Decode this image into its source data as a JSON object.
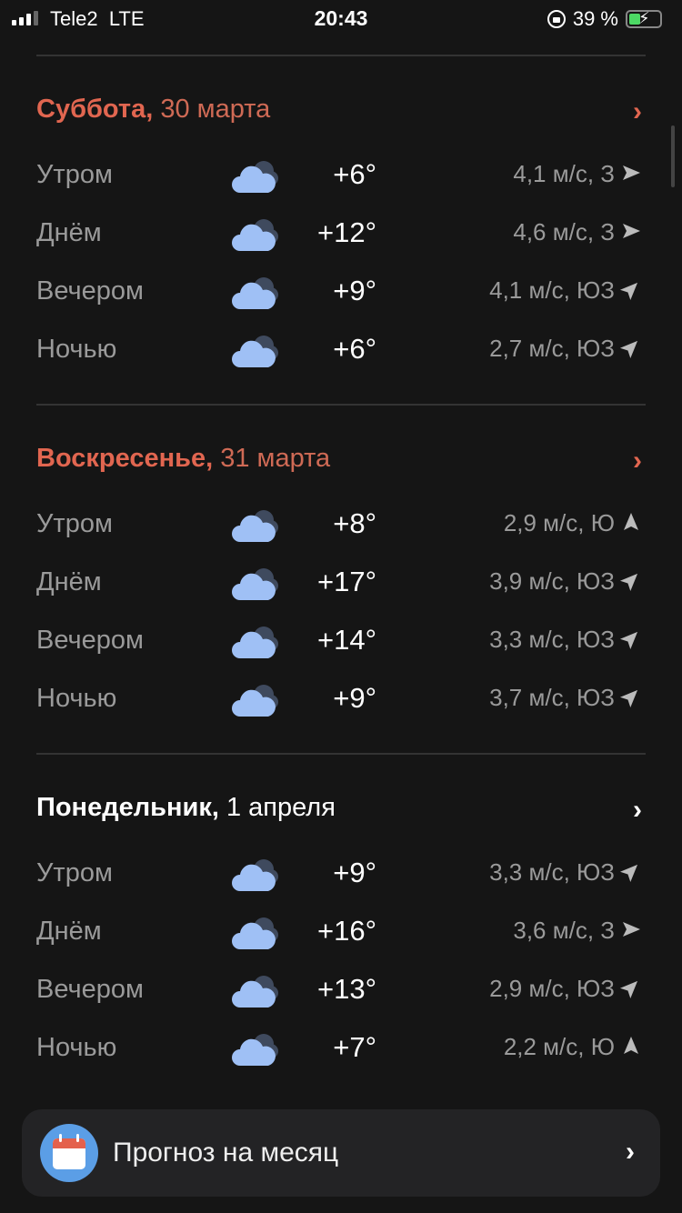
{
  "status_bar": {
    "carrier": "Tele2",
    "network": "LTE",
    "time": "20:43",
    "battery": "39 %",
    "battery_level": 0.39
  },
  "days": [
    {
      "weekday": "Суббота,",
      "date": "30 марта",
      "accent": true,
      "rows": [
        {
          "part": "Утром",
          "temp": "+6°",
          "wind": "4,1 м/с, З",
          "dir": "З"
        },
        {
          "part": "Днём",
          "temp": "+12°",
          "wind": "4,6 м/с, З",
          "dir": "З"
        },
        {
          "part": "Вечером",
          "temp": "+9°",
          "wind": "4,1 м/с, ЮЗ",
          "dir": "ЮЗ"
        },
        {
          "part": "Ночью",
          "temp": "+6°",
          "wind": "2,7 м/с, ЮЗ",
          "dir": "ЮЗ"
        }
      ]
    },
    {
      "weekday": "Воскресенье,",
      "date": "31 марта",
      "accent": true,
      "rows": [
        {
          "part": "Утром",
          "temp": "+8°",
          "wind": "2,9 м/с, Ю",
          "dir": "Ю"
        },
        {
          "part": "Днём",
          "temp": "+17°",
          "wind": "3,9 м/с, ЮЗ",
          "dir": "ЮЗ"
        },
        {
          "part": "Вечером",
          "temp": "+14°",
          "wind": "3,3 м/с, ЮЗ",
          "dir": "ЮЗ"
        },
        {
          "part": "Ночью",
          "temp": "+9°",
          "wind": "3,7 м/с, ЮЗ",
          "dir": "ЮЗ"
        }
      ]
    },
    {
      "weekday": "Понедельник,",
      "date": "1 апреля",
      "accent": false,
      "rows": [
        {
          "part": "Утром",
          "temp": "+9°",
          "wind": "3,3 м/с, ЮЗ",
          "dir": "ЮЗ"
        },
        {
          "part": "Днём",
          "temp": "+16°",
          "wind": "3,6 м/с, З",
          "dir": "З"
        },
        {
          "part": "Вечером",
          "temp": "+13°",
          "wind": "2,9 м/с, ЮЗ",
          "dir": "ЮЗ"
        },
        {
          "part": "Ночью",
          "temp": "+7°",
          "wind": "2,2 м/с, Ю",
          "dir": "Ю"
        }
      ]
    }
  ],
  "month_forecast": {
    "label": "Прогноз на месяц",
    "icon": "calendar-icon"
  },
  "colors": {
    "accent": "#e16650",
    "cloud": "#9fc0f5",
    "cloud_back": "#3f4a5e",
    "background": "#151515"
  }
}
